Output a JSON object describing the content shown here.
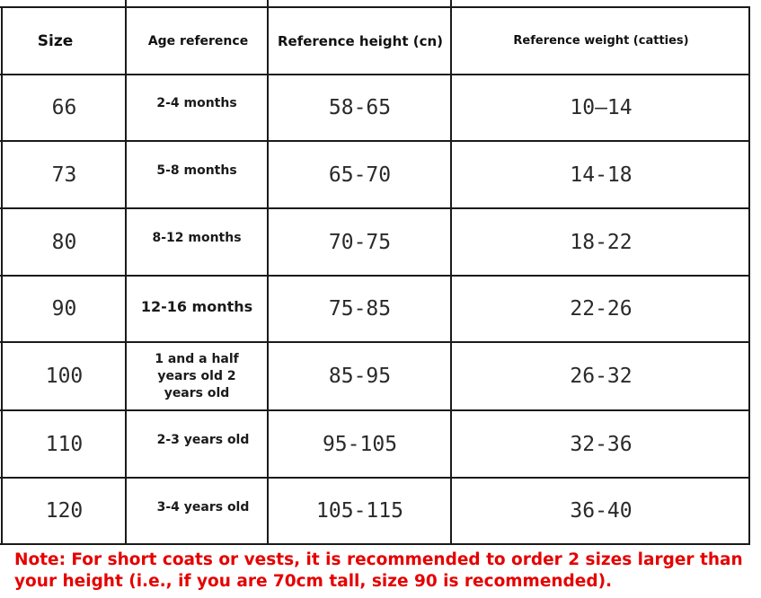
{
  "table": {
    "headers": {
      "size": "Size",
      "age": "Age reference",
      "height": "Reference height (cn)",
      "weight": "Reference weight (catties)"
    },
    "rows": [
      {
        "size": "66",
        "age": "2-4 months",
        "height": "58-65",
        "weight": "10—14"
      },
      {
        "size": "73",
        "age": "5-8 months",
        "height": "65-70",
        "weight": "14-18"
      },
      {
        "size": "80",
        "age": "8-12 months",
        "height": "70-75",
        "weight": "18-22"
      },
      {
        "size": "90",
        "age": "12-16 months",
        "height": "75-85",
        "weight": "22-26"
      },
      {
        "size": "100",
        "age": "1 and a half years old 2 years old",
        "height": "85-95",
        "weight": "26-32"
      },
      {
        "size": "110",
        "age": "2-3 years old",
        "height": "95-105",
        "weight": "32-36"
      },
      {
        "size": "120",
        "age": "3-4 years old",
        "height": "105-115",
        "weight": "36-40"
      }
    ]
  },
  "note": "Note: For short coats or vests, it is recommended to order 2 sizes larger than your height (i.e., if you are 70cm tall, size 90 is recommended).",
  "colors": {
    "note": "#e60000",
    "grid": "#1a1a1a"
  }
}
